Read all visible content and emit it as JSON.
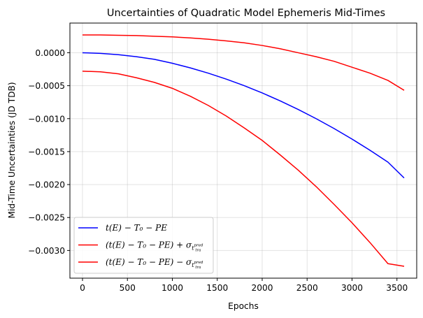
{
  "chart_data": {
    "type": "line",
    "title": "Uncertainties of Quadratic Model Ephemeris Mid-Times",
    "xlabel": "Epochs",
    "ylabel": "Mid-Time Uncertainties (JD TDB)",
    "xlim": [
      -140,
      3720
    ],
    "ylim": [
      -0.00342,
      0.00045
    ],
    "xticks": [
      0,
      500,
      1000,
      1500,
      2000,
      2500,
      3000,
      3500
    ],
    "xtick_labels": [
      "0",
      "500",
      "1000",
      "1500",
      "2000",
      "2500",
      "3000",
      "3500"
    ],
    "yticks": [
      0.0,
      -0.0005,
      -0.001,
      -0.0015,
      -0.002,
      -0.0025,
      -0.003
    ],
    "ytick_labels": [
      "0.0000",
      "−0.0005",
      "−0.0010",
      "−0.0015",
      "−0.0020",
      "−0.0025",
      "−0.0030"
    ],
    "grid": true,
    "legend_position": "lower-left",
    "x": [
      0,
      200,
      400,
      600,
      800,
      1000,
      1200,
      1400,
      1600,
      1800,
      2000,
      2200,
      2400,
      2600,
      2800,
      3000,
      3200,
      3400,
      3580
    ],
    "series": [
      {
        "name": "t(E) − T₀ − PE",
        "color": "#0000ff",
        "values": [
          0.0,
          -1e-05,
          -3e-05,
          -6e-05,
          -0.0001,
          -0.00016,
          -0.00023,
          -0.00031,
          -0.0004,
          -0.0005,
          -0.00061,
          -0.00073,
          -0.00086,
          -0.001,
          -0.00115,
          -0.00131,
          -0.00148,
          -0.00166,
          -0.0019
        ]
      },
      {
        "name": "(t(E) − T₀ − PE) + σ",
        "color": "#ff0000",
        "values": [
          0.00027,
          0.00027,
          0.000265,
          0.00026,
          0.00025,
          0.00024,
          0.000225,
          0.000205,
          0.00018,
          0.00015,
          0.00011,
          6e-05,
          0.0,
          -6e-05,
          -0.00013,
          -0.00022,
          -0.00031,
          -0.00042,
          -0.00057
        ]
      },
      {
        "name": "(t(E) − T₀ − PE) − σ",
        "color": "#ff0000",
        "values": [
          -0.00028,
          -0.00029,
          -0.00032,
          -0.00038,
          -0.00045,
          -0.00054,
          -0.00066,
          -0.0008,
          -0.00096,
          -0.00114,
          -0.00133,
          -0.00155,
          -0.00178,
          -0.00203,
          -0.0023,
          -0.00258,
          -0.00288,
          -0.0032,
          -0.00324
        ]
      }
    ],
    "legend": {
      "entries": [
        {
          "color": "#0000ff",
          "main": "t(E) − T₀ − PE",
          "sigma": false,
          "sign": ""
        },
        {
          "color": "#ff0000",
          "main": "(t(E) − T₀ − PE) + σ",
          "sigma": true,
          "sign": "+"
        },
        {
          "color": "#ff0000",
          "main": "(t(E) − T₀ − PE) − σ",
          "sigma": true,
          "sign": "−"
        }
      ],
      "sigma_sub": "t",
      "sigma_subsub": "tra",
      "sigma_sup": "pred"
    }
  }
}
